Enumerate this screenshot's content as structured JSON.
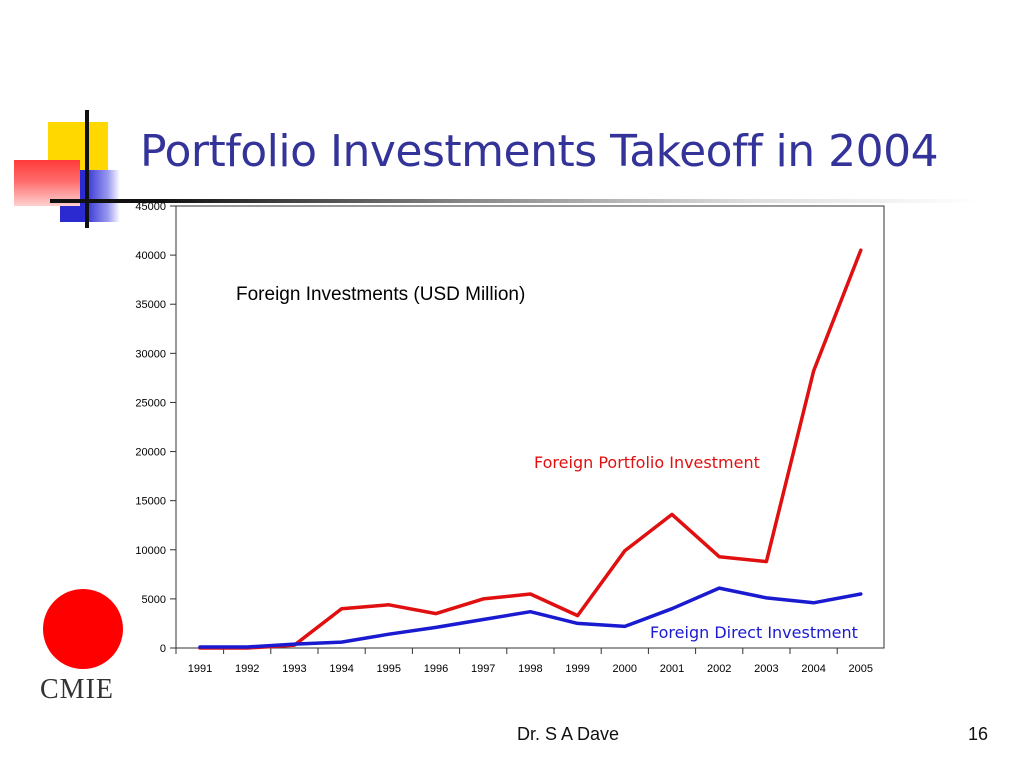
{
  "slide": {
    "title": "Portfolio Investments Takeoff in 2004",
    "footer_author": "Dr. S A Dave",
    "slide_number": "16",
    "logo_text": "CMIE",
    "colors": {
      "title": "#333399",
      "fpi": "#e01010",
      "fdi": "#1a1ad0",
      "logo": "#ff0000",
      "deco_yellow": "#ffd800",
      "deco_blue": "#2a2ad0",
      "deco_red": "#ff3a3a"
    }
  },
  "chart_data": {
    "type": "line",
    "title": "Foreign Investments (USD Million)",
    "xlabel": "",
    "ylabel": "",
    "categories": [
      "1991",
      "1992",
      "1993",
      "1994",
      "1995",
      "1996",
      "1997",
      "1998",
      "1999",
      "2000",
      "2001",
      "2002",
      "2003",
      "2004",
      "2005"
    ],
    "y_ticks": [
      "0",
      "5000",
      "10000",
      "15000",
      "20000",
      "25000",
      "30000",
      "35000",
      "40000",
      "45000"
    ],
    "ylim": [
      0,
      45000
    ],
    "grid": false,
    "legend": "inline labels",
    "series": [
      {
        "name": "Foreign Portfolio Investment",
        "color": "#e01010",
        "values": [
          0,
          0,
          300,
          4000,
          4400,
          3500,
          5000,
          5500,
          3300,
          9900,
          13600,
          9300,
          8800,
          28200,
          40500
        ]
      },
      {
        "name": "Foreign Direct Investment",
        "color": "#1a1ad0",
        "values": [
          100,
          100,
          400,
          600,
          1400,
          2100,
          2900,
          3700,
          2500,
          2200,
          4000,
          6100,
          5100,
          4600,
          5500
        ]
      }
    ]
  }
}
